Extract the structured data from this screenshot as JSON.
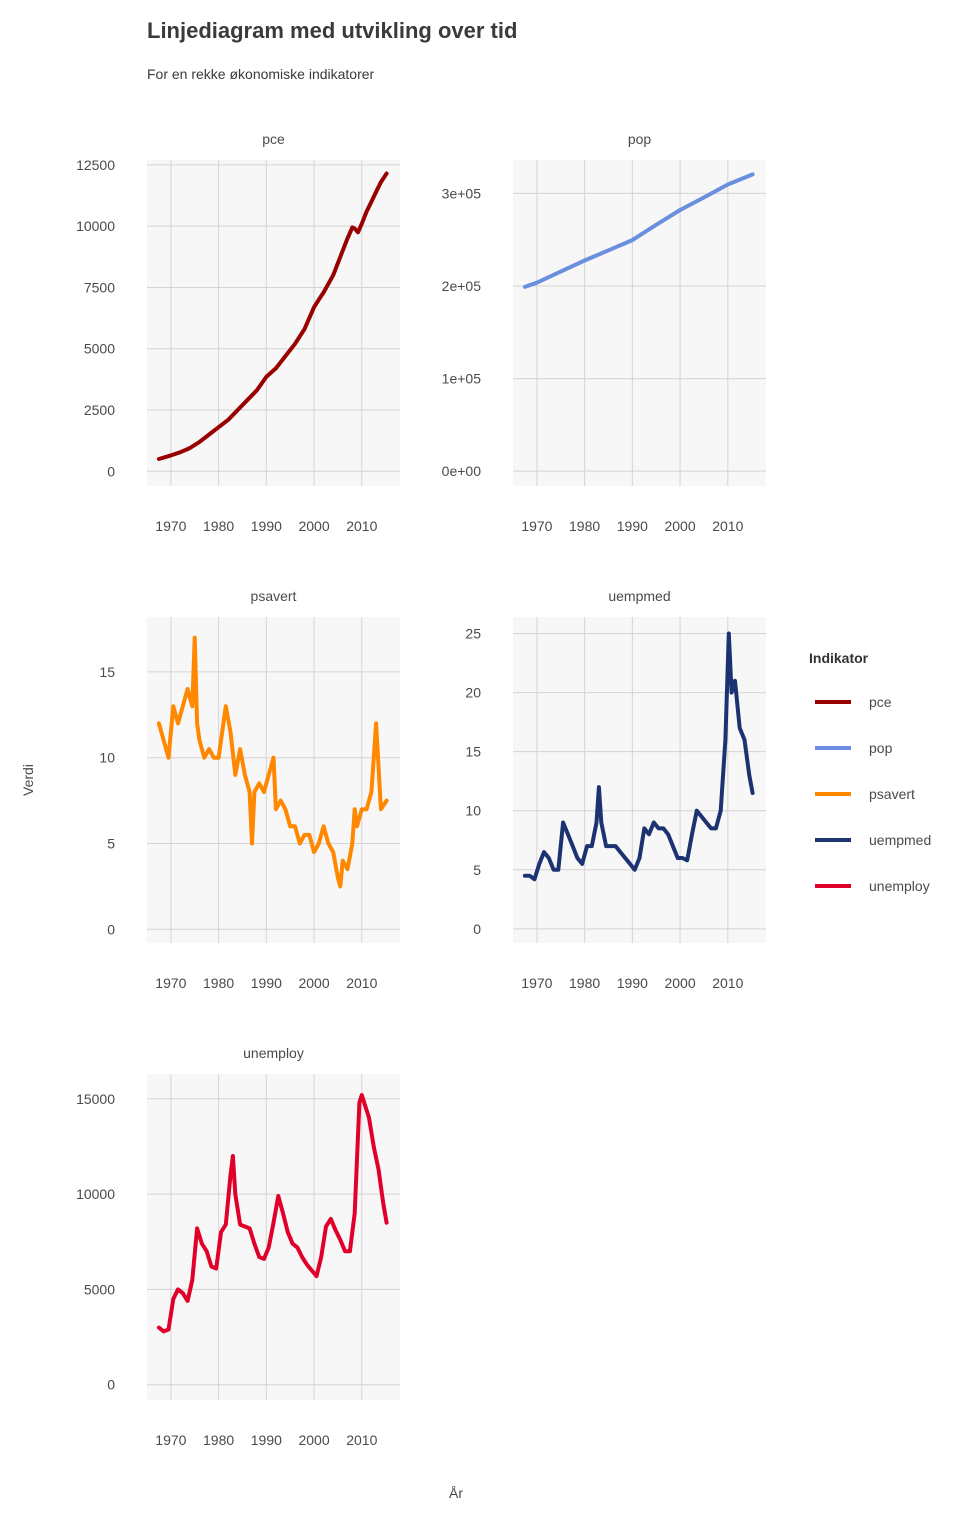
{
  "title": "Linjediagram med utvikling over tid",
  "subtitle": "For en rekke økonomiske indikatorer",
  "chart_data": {
    "type": "line",
    "title": "Linjediagram med utvikling over tid",
    "subtitle": "For en rekke økonomiske indikatorer",
    "xlabel": "År",
    "ylabel": "Verdi",
    "grid": true,
    "legend": {
      "title": "Indikator",
      "placement": "right",
      "entries": [
        "pce",
        "pop",
        "psavert",
        "uempmed",
        "unemploy"
      ]
    },
    "x_ticks": [
      1970,
      1980,
      1990,
      2000,
      2010
    ],
    "xlim": [
      1965,
      2018
    ],
    "panels": [
      {
        "name": "pce",
        "color": "#990000",
        "ylim": [
          -600,
          12700
        ],
        "y_ticks": [
          0,
          2500,
          5000,
          7500,
          10000,
          12500
        ],
        "y_tick_labels": [
          "0",
          "2500",
          "5000",
          "7500",
          "10000",
          "12500"
        ],
        "x": [
          1967.5,
          1970,
          1972,
          1974,
          1976,
          1978,
          1980,
          1982,
          1984,
          1986,
          1988,
          1990,
          1992,
          1994,
          1996,
          1998,
          2000,
          2001,
          2002,
          2004,
          2006,
          2007,
          2008,
          2008.5,
          2009.2,
          2010,
          2011,
          2012,
          2013,
          2014,
          2015.2
        ],
        "values": [
          500,
          650,
          780,
          950,
          1200,
          1500,
          1800,
          2100,
          2500,
          2900,
          3300,
          3850,
          4200,
          4700,
          5200,
          5800,
          6700,
          7000,
          7300,
          8000,
          9000,
          9500,
          9950,
          9900,
          9750,
          10100,
          10600,
          11000,
          11400,
          11800,
          12150
        ]
      },
      {
        "name": "pop",
        "color": "#6a8fde",
        "ylim": [
          -16000,
          336000
        ],
        "y_ticks": [
          0,
          100000,
          200000,
          300000
        ],
        "y_tick_labels": [
          "0e+00",
          "1e+05",
          "2e+05",
          "3e+05"
        ],
        "x": [
          1967.5,
          1970,
          1975,
          1980,
          1985,
          1990,
          1995,
          2000,
          2005,
          2010,
          2015.2
        ],
        "values": [
          199000,
          203500,
          215500,
          227500,
          238500,
          249500,
          266000,
          282000,
          295500,
          309500,
          320500
        ]
      },
      {
        "name": "psavert",
        "color": "#ff8800",
        "ylim": [
          -0.8,
          18.2
        ],
        "y_ticks": [
          0,
          5,
          10,
          15
        ],
        "y_tick_labels": [
          "0",
          "5",
          "10",
          "15"
        ],
        "x": [
          1967.5,
          1968.5,
          1969.5,
          1970.5,
          1971.5,
          1972.5,
          1973.5,
          1974.5,
          1975,
          1975.5,
          1976,
          1977,
          1978,
          1979,
          1980,
          1981,
          1981.5,
          1982.5,
          1983.5,
          1984.5,
          1985.5,
          1986.5,
          1987,
          1987.5,
          1988.5,
          1989.5,
          1990.5,
          1991.5,
          1992,
          1993,
          1994,
          1995,
          1996,
          1997,
          1998,
          1999,
          2000,
          2001,
          2002,
          2003,
          2004,
          2005,
          2005.5,
          2006,
          2007,
          2008,
          2008.5,
          2009,
          2010,
          2011,
          2012,
          2013,
          2014,
          2015.2
        ],
        "values": [
          12,
          11,
          10,
          13,
          12,
          13,
          14,
          13,
          17,
          12,
          11,
          10,
          10.5,
          10,
          10,
          12,
          13,
          11.5,
          9,
          10.5,
          9,
          8,
          5,
          8,
          8.5,
          8,
          9,
          10,
          7,
          7.5,
          7,
          6,
          6,
          5,
          5.5,
          5.5,
          4.5,
          5,
          6,
          5,
          4.5,
          3,
          2.5,
          4,
          3.5,
          5,
          7,
          6,
          7,
          7,
          8,
          12,
          7,
          7.5
        ]
      },
      {
        "name": "uempmed",
        "color": "#1b3370",
        "ylim": [
          -1.2,
          26.4
        ],
        "y_ticks": [
          0,
          5,
          10,
          15,
          20,
          25
        ],
        "y_tick_labels": [
          "0",
          "5",
          "10",
          "15",
          "20",
          "25"
        ],
        "x": [
          1967.5,
          1968.5,
          1969.5,
          1970.5,
          1971.5,
          1972.5,
          1973.5,
          1974.5,
          1975.5,
          1976.5,
          1977.5,
          1978.5,
          1979.5,
          1980.5,
          1981.5,
          1982.5,
          1983,
          1983.5,
          1984.5,
          1985.5,
          1986.5,
          1987.5,
          1988.5,
          1989.5,
          1990.5,
          1991.5,
          1992.5,
          1993.5,
          1994.5,
          1995.5,
          1996.5,
          1997.5,
          1998.5,
          1999.5,
          2000.5,
          2001.5,
          2002.5,
          2003.5,
          2004.5,
          2005.5,
          2006.5,
          2007.5,
          2008.5,
          2009.5,
          2010.2,
          2010.8,
          2011.5,
          2012.5,
          2013.5,
          2014.5,
          2015.2
        ],
        "values": [
          4.5,
          4.5,
          4.2,
          5.5,
          6.5,
          6,
          5,
          5,
          9,
          8,
          7,
          6,
          5.5,
          7,
          7,
          9,
          12,
          9,
          7,
          7,
          7,
          6.5,
          6,
          5.5,
          5,
          6,
          8.5,
          8,
          9,
          8.5,
          8.5,
          8,
          7,
          6,
          6,
          5.8,
          8,
          10,
          9.5,
          9,
          8.5,
          8.5,
          10,
          16,
          25,
          20,
          21,
          17,
          16,
          13,
          11.5
        ]
      },
      {
        "name": "unemploy",
        "color": "#e0002a",
        "ylim": [
          -800,
          16300
        ],
        "y_ticks": [
          0,
          5000,
          10000,
          15000
        ],
        "y_tick_labels": [
          "0",
          "5000",
          "10000",
          "15000"
        ],
        "x": [
          1967.5,
          1968.5,
          1969.5,
          1970.5,
          1971.5,
          1972.5,
          1973.5,
          1974.5,
          1975.5,
          1976.5,
          1977.5,
          1978.5,
          1979.5,
          1980.5,
          1981.5,
          1982.5,
          1983,
          1983.5,
          1984.5,
          1985.5,
          1986.5,
          1987.5,
          1988.5,
          1989.5,
          1990.5,
          1991.5,
          1992.5,
          1993.5,
          1994.5,
          1995.5,
          1996.5,
          1997.5,
          1998.5,
          1999.5,
          2000.5,
          2001.5,
          2002.5,
          2003.5,
          2004.5,
          2005.5,
          2006.5,
          2007.5,
          2008.5,
          2009.5,
          2010,
          2010.5,
          2011.5,
          2012.5,
          2013.5,
          2014.5,
          2015.2
        ],
        "values": [
          3000,
          2800,
          2900,
          4500,
          5000,
          4800,
          4400,
          5500,
          8200,
          7400,
          7000,
          6200,
          6100,
          8000,
          8400,
          11000,
          12000,
          10000,
          8400,
          8300,
          8200,
          7400,
          6700,
          6600,
          7200,
          8500,
          9900,
          9000,
          8000,
          7400,
          7200,
          6700,
          6300,
          6000,
          5700,
          6700,
          8300,
          8700,
          8100,
          7600,
          7000,
          7000,
          9000,
          14800,
          15200,
          14800,
          14000,
          12500,
          11300,
          9500,
          8500
        ]
      }
    ]
  }
}
